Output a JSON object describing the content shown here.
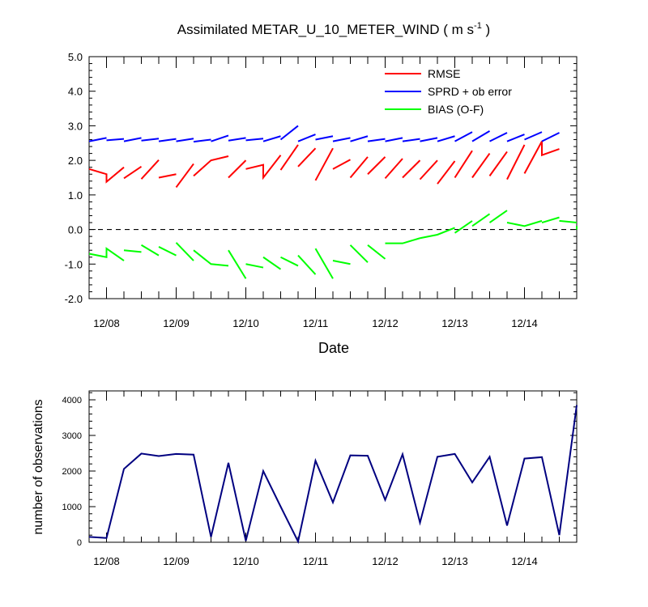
{
  "chart_data": [
    {
      "type": "line",
      "title": "Assimilated METAR_U_10_METER_WIND",
      "title_units": "( m s",
      "title_units_exp": "-1",
      "title_units_close": " )",
      "xlabel": "Date",
      "ylabel": "",
      "xlim": [
        0,
        7
      ],
      "ylim": [
        -2.0,
        5.0
      ],
      "yticks": [
        -2.0,
        -1.0,
        0.0,
        1.0,
        2.0,
        3.0,
        4.0,
        5.0
      ],
      "ytick_labels": [
        "-2.0",
        "-1.0",
        "0.0",
        "1.0",
        "2.0",
        "3.0",
        "4.0",
        "5.0"
      ],
      "x_tick_positions": [
        0.25,
        1.25,
        2.25,
        3.25,
        4.25,
        5.25,
        6.25
      ],
      "x_tick_labels": [
        "12/08",
        "12/09",
        "12/10",
        "12/11",
        "12/12",
        "12/13",
        "12/14"
      ],
      "zero_line": true,
      "legend_position": "top-right",
      "series": [
        {
          "name": "RMSE",
          "color": "#ff0000",
          "segments": [
            [
              [
                0,
                1.75
              ],
              [
                0.25,
                1.6
              ],
              [
                0.25,
                1.38
              ],
              [
                0.5,
                1.8
              ]
            ],
            [
              [
                0.5,
                1.48
              ],
              [
                0.75,
                1.82
              ]
            ],
            [
              [
                0.75,
                1.46
              ],
              [
                1.0,
                2.01
              ]
            ],
            [
              [
                1.0,
                1.5
              ],
              [
                1.25,
                1.6
              ]
            ],
            [
              [
                1.25,
                1.22
              ],
              [
                1.5,
                1.9
              ]
            ],
            [
              [
                1.5,
                1.55
              ],
              [
                1.75,
                2.0
              ],
              [
                2.0,
                2.12
              ]
            ],
            [
              [
                2.0,
                1.5
              ],
              [
                2.25,
                2.0
              ]
            ],
            [
              [
                2.25,
                1.75
              ],
              [
                2.5,
                1.87
              ],
              [
                2.5,
                1.5
              ],
              [
                2.75,
                2.15
              ]
            ],
            [
              [
                2.75,
                1.72
              ],
              [
                3.0,
                2.45
              ]
            ],
            [
              [
                3.0,
                1.82
              ],
              [
                3.25,
                2.35
              ]
            ],
            [
              [
                3.25,
                1.42
              ],
              [
                3.5,
                2.35
              ]
            ],
            [
              [
                3.5,
                1.75
              ],
              [
                3.75,
                2.02
              ]
            ],
            [
              [
                3.75,
                1.5
              ],
              [
                4.0,
                2.1
              ]
            ],
            [
              [
                4.0,
                1.6
              ],
              [
                4.25,
                2.1
              ]
            ],
            [
              [
                4.25,
                1.48
              ],
              [
                4.5,
                2.05
              ]
            ],
            [
              [
                4.5,
                1.5
              ],
              [
                4.75,
                2.0
              ]
            ],
            [
              [
                4.75,
                1.45
              ],
              [
                5.0,
                2.0
              ]
            ],
            [
              [
                5.0,
                1.32
              ],
              [
                5.25,
                1.98
              ]
            ],
            [
              [
                5.25,
                1.5
              ],
              [
                5.5,
                2.28
              ]
            ],
            [
              [
                5.5,
                1.5
              ],
              [
                5.75,
                2.2
              ]
            ],
            [
              [
                5.75,
                1.55
              ],
              [
                6.0,
                2.25
              ]
            ],
            [
              [
                6.0,
                1.45
              ],
              [
                6.25,
                2.45
              ]
            ],
            [
              [
                6.25,
                1.62
              ],
              [
                6.5,
                2.55
              ],
              [
                6.5,
                2.15
              ],
              [
                6.75,
                2.33
              ]
            ],
            [
              [
                6.75,
                1.6
              ]
            ]
          ]
        },
        {
          "name": "SPRD + ob error",
          "color": "#0000ff",
          "segments": [
            [
              [
                0,
                2.55
              ],
              [
                0.25,
                2.65
              ]
            ],
            [
              [
                0.25,
                2.58
              ],
              [
                0.5,
                2.62
              ]
            ],
            [
              [
                0.5,
                2.55
              ],
              [
                0.75,
                2.65
              ]
            ],
            [
              [
                0.75,
                2.57
              ],
              [
                1.0,
                2.63
              ]
            ],
            [
              [
                1.0,
                2.55
              ],
              [
                1.25,
                2.62
              ]
            ],
            [
              [
                1.25,
                2.55
              ],
              [
                1.5,
                2.63
              ]
            ],
            [
              [
                1.5,
                2.54
              ],
              [
                1.75,
                2.6
              ]
            ],
            [
              [
                1.75,
                2.55
              ],
              [
                2.0,
                2.72
              ]
            ],
            [
              [
                2.0,
                2.57
              ],
              [
                2.25,
                2.65
              ]
            ],
            [
              [
                2.25,
                2.58
              ],
              [
                2.5,
                2.63
              ]
            ],
            [
              [
                2.5,
                2.55
              ],
              [
                2.75,
                2.7
              ]
            ],
            [
              [
                2.75,
                2.6
              ],
              [
                3.0,
                3.0
              ]
            ],
            [
              [
                3.0,
                2.55
              ],
              [
                3.25,
                2.75
              ]
            ],
            [
              [
                3.25,
                2.6
              ],
              [
                3.5,
                2.7
              ]
            ],
            [
              [
                3.5,
                2.55
              ],
              [
                3.75,
                2.65
              ]
            ],
            [
              [
                3.75,
                2.55
              ],
              [
                4.0,
                2.7
              ]
            ],
            [
              [
                4.0,
                2.55
              ],
              [
                4.25,
                2.62
              ]
            ],
            [
              [
                4.25,
                2.55
              ],
              [
                4.5,
                2.65
              ]
            ],
            [
              [
                4.5,
                2.55
              ],
              [
                4.75,
                2.62
              ]
            ],
            [
              [
                4.75,
                2.55
              ],
              [
                5.0,
                2.65
              ]
            ],
            [
              [
                5.0,
                2.55
              ],
              [
                5.25,
                2.7
              ]
            ],
            [
              [
                5.25,
                2.55
              ],
              [
                5.5,
                2.82
              ]
            ],
            [
              [
                5.5,
                2.55
              ],
              [
                5.75,
                2.85
              ]
            ],
            [
              [
                5.75,
                2.55
              ],
              [
                6.0,
                2.8
              ]
            ],
            [
              [
                6.0,
                2.55
              ],
              [
                6.25,
                2.75
              ]
            ],
            [
              [
                6.25,
                2.6
              ],
              [
                6.5,
                2.82
              ]
            ],
            [
              [
                6.5,
                2.55
              ],
              [
                6.75,
                2.8
              ]
            ]
          ]
        },
        {
          "name": "BIAS (O-F)",
          "color": "#00ff00",
          "segments": [
            [
              [
                0,
                -0.7
              ],
              [
                0.25,
                -0.8
              ],
              [
                0.25,
                -0.55
              ],
              [
                0.5,
                -0.9
              ]
            ],
            [
              [
                0.5,
                -0.6
              ],
              [
                0.75,
                -0.65
              ]
            ],
            [
              [
                0.75,
                -0.45
              ],
              [
                1.0,
                -0.75
              ]
            ],
            [
              [
                1.0,
                -0.5
              ],
              [
                1.25,
                -0.75
              ]
            ],
            [
              [
                1.25,
                -0.38
              ],
              [
                1.5,
                -0.9
              ]
            ],
            [
              [
                1.5,
                -0.6
              ],
              [
                1.75,
                -1.0
              ],
              [
                2.0,
                -1.05
              ]
            ],
            [
              [
                2.0,
                -0.6
              ],
              [
                2.25,
                -1.42
              ]
            ],
            [
              [
                2.25,
                -1.0
              ],
              [
                2.5,
                -1.1
              ]
            ],
            [
              [
                2.5,
                -0.8
              ],
              [
                2.75,
                -1.15
              ]
            ],
            [
              [
                2.75,
                -0.8
              ],
              [
                3.0,
                -1.05
              ]
            ],
            [
              [
                3.0,
                -0.75
              ],
              [
                3.25,
                -1.3
              ]
            ],
            [
              [
                3.25,
                -0.55
              ],
              [
                3.5,
                -1.42
              ]
            ],
            [
              [
                3.5,
                -0.9
              ],
              [
                3.75,
                -1.0
              ]
            ],
            [
              [
                3.75,
                -0.45
              ],
              [
                4.0,
                -0.95
              ]
            ],
            [
              [
                4.0,
                -0.45
              ],
              [
                4.25,
                -0.85
              ]
            ],
            [
              [
                4.25,
                -0.4
              ],
              [
                4.5,
                -0.4
              ],
              [
                4.75,
                -0.25
              ]
            ],
            [
              [
                4.75,
                -0.25
              ],
              [
                5.0,
                -0.15
              ],
              [
                5.25,
                0.05
              ]
            ],
            [
              [
                5.25,
                -0.1
              ],
              [
                5.5,
                0.25
              ]
            ],
            [
              [
                5.5,
                0.1
              ],
              [
                5.75,
                0.45
              ]
            ],
            [
              [
                5.75,
                0.2
              ],
              [
                6.0,
                0.55
              ]
            ],
            [
              [
                6.0,
                0.2
              ],
              [
                6.25,
                0.1
              ],
              [
                6.5,
                0.25
              ]
            ],
            [
              [
                6.5,
                0.2
              ],
              [
                6.75,
                0.35
              ]
            ],
            [
              [
                6.75,
                0.25
              ],
              [
                7.0,
                0.2
              ]
            ],
            [
              [
                7.0,
                0.0
              ],
              [
                7.25,
                0.1
              ]
            ],
            [
              [
                7.25,
                -0.75
              ]
            ]
          ]
        }
      ]
    },
    {
      "type": "line",
      "title": "",
      "xlabel": "",
      "ylabel": "number of observations",
      "xlim": [
        0,
        7
      ],
      "ylim": [
        0,
        4250
      ],
      "yticks": [
        0,
        1000,
        2000,
        3000,
        4000
      ],
      "ytick_labels": [
        "0",
        "1000",
        "2000",
        "3000",
        "4000"
      ],
      "x_tick_positions": [
        0.25,
        1.25,
        2.25,
        3.25,
        4.25,
        5.25,
        6.25
      ],
      "x_tick_labels": [
        "12/08",
        "12/09",
        "12/10",
        "12/11",
        "12/12",
        "12/13",
        "12/14"
      ],
      "series": [
        {
          "color": "#000080",
          "x": [
            0,
            0.25,
            0.5,
            0.75,
            1.0,
            1.25,
            1.5,
            1.75,
            2.0,
            2.25,
            2.5,
            2.75,
            3.0,
            3.25,
            3.5,
            3.75,
            4.0,
            4.25,
            4.5,
            4.75,
            5.0,
            5.25,
            5.5,
            5.75,
            6.0,
            6.25,
            6.5,
            6.75,
            7.0
          ],
          "values": [
            150,
            120,
            2060,
            2490,
            2420,
            2480,
            2460,
            150,
            2230,
            40,
            2000,
            1000,
            20,
            2290,
            1120,
            2440,
            2430,
            1190,
            2470,
            550,
            2400,
            2480,
            1680,
            2400,
            470,
            2350,
            2390,
            200,
            3850
          ]
        }
      ]
    }
  ]
}
